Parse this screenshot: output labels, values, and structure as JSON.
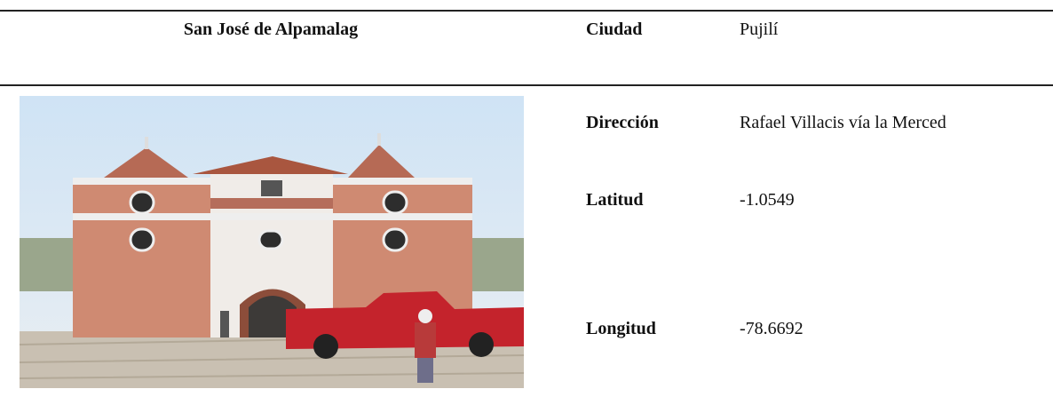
{
  "table": {
    "title": "San José de Alpamalag",
    "rows": [
      [
        "Ciudad",
        "Pujilí"
      ],
      [
        "Dirección",
        "Rafael Villacis vía la Merced"
      ],
      [
        "Latitud",
        "-1.0549"
      ],
      [
        "Longitud",
        "-78.6692"
      ]
    ]
  }
}
